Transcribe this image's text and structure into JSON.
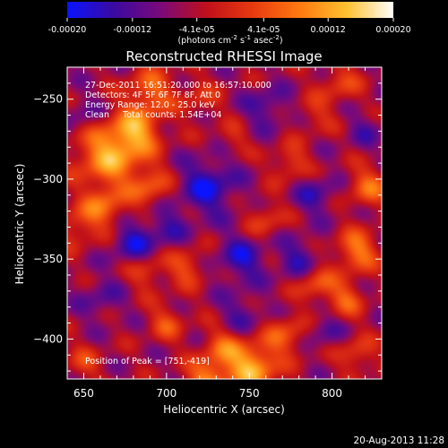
{
  "colorbar": {
    "tick_labels": [
      "-0.00020",
      "-0.00012",
      "-4.1e-05",
      "4.1e-05",
      "0.00012",
      "0.00020"
    ],
    "tick_values": [
      -0.0002,
      -0.00012,
      -4.1e-05,
      4.1e-05,
      0.00012,
      0.0002
    ],
    "range": [
      -0.0002,
      0.0002
    ],
    "units_prefix": "(photons cm",
    "units_exp1": "-2",
    "units_mid": " s",
    "units_exp2": "-1",
    "units_mid2": " asec",
    "units_exp3": "-2",
    "units_suffix": ")",
    "stops": [
      "#0a14ff",
      "#3a0aa0",
      "#7a0a7a",
      "#c0101a",
      "#e83a10",
      "#ff7a10",
      "#ffc030",
      "#ffffff"
    ]
  },
  "chart_data": {
    "type": "heatmap",
    "title": "Reconstructed RHESSI Image",
    "xlabel": "Heliocentric X (arcsec)",
    "ylabel": "Heliocentric Y (arcsec)",
    "xlim": [
      640,
      830
    ],
    "ylim": [
      -425,
      -230
    ],
    "xticks": [
      650,
      700,
      750,
      800
    ],
    "yticks": [
      -250,
      -300,
      -350,
      -400
    ],
    "xtick_labels": [
      "650",
      "700",
      "750",
      "800"
    ],
    "ytick_labels": [
      "−250",
      "−300",
      "−350",
      "−400"
    ],
    "annotations": [
      "27-Dec-2011 16:51:20.000 to 16:57:10.000",
      "Detectors: 4F 5F 6F 7F 8F, Att 0",
      "Energy Range: 12.0 - 25.0 keV",
      "Clean     Total counts: 1.54E+04"
    ],
    "peak_label": "Position of Peak = [751,-419]",
    "peak": [
      751,
      -419
    ],
    "blobs": [
      {
        "x": 665,
        "y": -285,
        "v": 1.0,
        "s": 14
      },
      {
        "x": 682,
        "y": -270,
        "v": 0.85,
        "s": 10
      },
      {
        "x": 690,
        "y": -305,
        "v": 0.6,
        "s": 9
      },
      {
        "x": 690,
        "y": -245,
        "v": 0.7,
        "s": 10
      },
      {
        "x": 662,
        "y": -318,
        "v": 0.7,
        "s": 9
      },
      {
        "x": 645,
        "y": -330,
        "v": 0.45,
        "s": 9
      },
      {
        "x": 720,
        "y": -250,
        "v": 0.35,
        "s": 9
      },
      {
        "x": 712,
        "y": -355,
        "v": 0.55,
        "s": 8
      },
      {
        "x": 688,
        "y": -358,
        "v": 0.45,
        "s": 8
      },
      {
        "x": 700,
        "y": -390,
        "v": 0.5,
        "s": 8
      },
      {
        "x": 735,
        "y": -405,
        "v": 0.6,
        "s": 9
      },
      {
        "x": 752,
        "y": -418,
        "v": 1.1,
        "s": 10
      },
      {
        "x": 725,
        "y": -425,
        "v": 0.85,
        "s": 9
      },
      {
        "x": 772,
        "y": -398,
        "v": 0.6,
        "s": 9
      },
      {
        "x": 790,
        "y": -365,
        "v": 0.6,
        "s": 8
      },
      {
        "x": 815,
        "y": -345,
        "v": 0.8,
        "s": 9
      },
      {
        "x": 822,
        "y": -305,
        "v": 0.65,
        "s": 9
      },
      {
        "x": 808,
        "y": -375,
        "v": 0.6,
        "s": 8
      },
      {
        "x": 760,
        "y": -325,
        "v": 0.45,
        "s": 8
      },
      {
        "x": 775,
        "y": -290,
        "v": 0.5,
        "s": 8
      },
      {
        "x": 790,
        "y": -260,
        "v": 0.35,
        "s": 8
      },
      {
        "x": 740,
        "y": -275,
        "v": 0.3,
        "s": 7
      },
      {
        "x": 815,
        "y": -410,
        "v": 0.5,
        "s": 8
      },
      {
        "x": 650,
        "y": -415,
        "v": 0.4,
        "s": 8
      },
      {
        "x": 805,
        "y": -240,
        "v": 0.45,
        "s": 9
      },
      {
        "x": 725,
        "y": -305,
        "v": -0.7,
        "s": 12
      },
      {
        "x": 745,
        "y": -350,
        "v": -0.6,
        "s": 10
      },
      {
        "x": 680,
        "y": -340,
        "v": -0.6,
        "s": 9
      },
      {
        "x": 700,
        "y": -330,
        "v": -0.4,
        "s": 9
      },
      {
        "x": 780,
        "y": -350,
        "v": -0.5,
        "s": 9
      },
      {
        "x": 760,
        "y": -255,
        "v": -0.45,
        "s": 9
      },
      {
        "x": 790,
        "y": -310,
        "v": -0.45,
        "s": 9
      },
      {
        "x": 650,
        "y": -260,
        "v": -0.35,
        "s": 8
      },
      {
        "x": 745,
        "y": -385,
        "v": -0.4,
        "s": 9
      },
      {
        "x": 795,
        "y": -395,
        "v": -0.35,
        "s": 8
      },
      {
        "x": 660,
        "y": -375,
        "v": -0.35,
        "s": 9
      },
      {
        "x": 820,
        "y": -270,
        "v": -0.3,
        "s": 8
      }
    ]
  },
  "footer": {
    "timestamp": "20-Aug-2013 11:28"
  }
}
